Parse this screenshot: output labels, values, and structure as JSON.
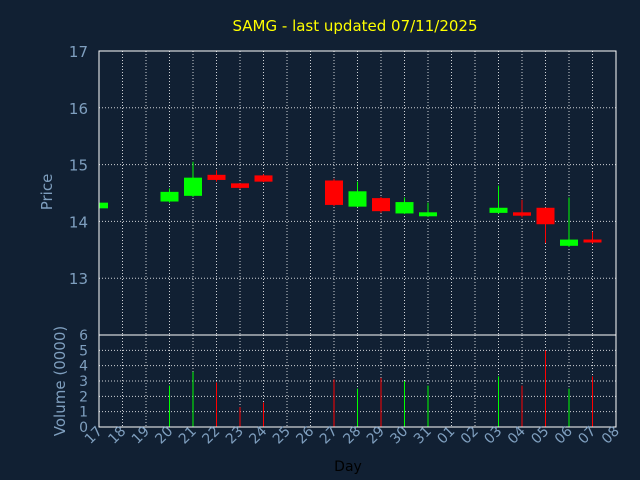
{
  "chart_data": {
    "type": "candlestick",
    "title": "SAMG - last updated 07/11/2025",
    "price_axis": {
      "label": "Price",
      "ylim": [
        12.0,
        17.0
      ],
      "ticks": [
        "13",
        "14",
        "15",
        "16",
        "17"
      ],
      "tick_values": [
        13,
        14,
        15,
        16,
        17
      ]
    },
    "volume_axis": {
      "label": "Volume (0000)",
      "ylim": [
        0,
        6
      ],
      "ticks": [
        "0",
        "1",
        "2",
        "3",
        "4",
        "5",
        "6"
      ],
      "tick_values": [
        0,
        1,
        2,
        3,
        4,
        5,
        6
      ]
    },
    "xlabel": "Day",
    "x_ticks": [
      "17",
      "18",
      "19",
      "20",
      "21",
      "22",
      "23",
      "24",
      "25",
      "26",
      "27",
      "28",
      "29",
      "30",
      "31",
      "01",
      "02",
      "03",
      "04",
      "05",
      "06",
      "07",
      "08"
    ],
    "grid": true,
    "colors": {
      "background": "#112033",
      "plot_border": "#ffffff",
      "grid": "#ffffff",
      "title": "#ffff00",
      "axis_text": "#7f9fbf",
      "up": "#00ff00",
      "down": "#ff0000"
    },
    "candles": [
      {
        "x": "17",
        "open": 14.23,
        "high": 14.35,
        "low": 14.23,
        "close": 14.33,
        "volume": 0
      },
      {
        "x": "20",
        "open": 14.35,
        "high": 14.58,
        "low": 14.33,
        "close": 14.52,
        "volume": 2.7
      },
      {
        "x": "21",
        "open": 14.45,
        "high": 15.05,
        "low": 14.43,
        "close": 14.77,
        "volume": 3.6
      },
      {
        "x": "22",
        "open": 14.82,
        "high": 14.9,
        "low": 14.7,
        "close": 14.73,
        "volume": 2.9
      },
      {
        "x": "23",
        "open": 14.67,
        "high": 14.67,
        "low": 14.57,
        "close": 14.59,
        "volume": 1.3
      },
      {
        "x": "24",
        "open": 14.81,
        "high": 14.83,
        "low": 14.69,
        "close": 14.7,
        "volume": 1.6
      },
      {
        "x": "27",
        "open": 14.72,
        "high": 14.75,
        "low": 14.27,
        "close": 14.29,
        "volume": 3.1
      },
      {
        "x": "28",
        "open": 14.26,
        "high": 14.7,
        "low": 14.25,
        "close": 14.53,
        "volume": 2.5
      },
      {
        "x": "29",
        "open": 14.41,
        "high": 14.43,
        "low": 14.15,
        "close": 14.18,
        "volume": 3.2
      },
      {
        "x": "30",
        "open": 14.14,
        "high": 14.42,
        "low": 14.13,
        "close": 14.34,
        "volume": 3.0
      },
      {
        "x": "31",
        "open": 14.09,
        "high": 14.33,
        "low": 14.08,
        "close": 14.16,
        "volume": 2.7
      },
      {
        "x": "03",
        "open": 14.15,
        "high": 14.63,
        "low": 14.14,
        "close": 14.24,
        "volume": 3.3
      },
      {
        "x": "04",
        "open": 14.16,
        "high": 14.38,
        "low": 14.07,
        "close": 14.1,
        "volume": 2.7
      },
      {
        "x": "05",
        "open": 14.24,
        "high": 14.24,
        "low": 13.62,
        "close": 13.95,
        "volume": 5.0
      },
      {
        "x": "06",
        "open": 13.57,
        "high": 14.42,
        "low": 13.55,
        "close": 13.68,
        "volume": 2.5
      },
      {
        "x": "07",
        "open": 13.67,
        "high": 13.82,
        "low": 13.61,
        "close": 13.64,
        "volume": 3.3
      }
    ]
  }
}
